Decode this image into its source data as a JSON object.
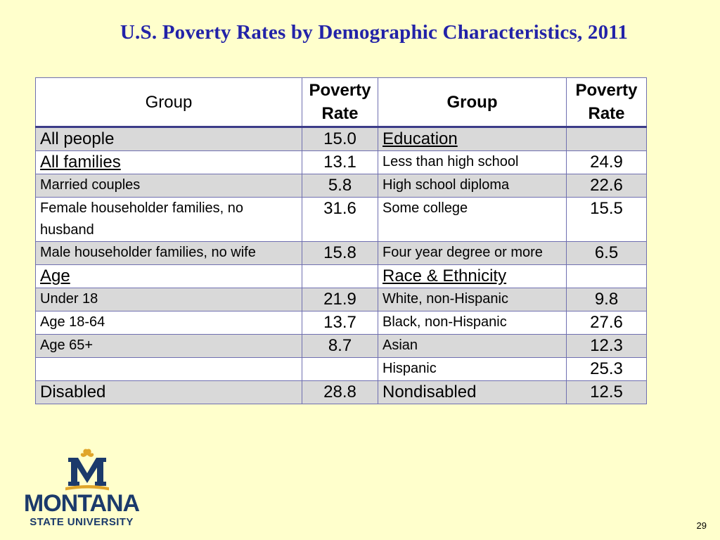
{
  "title": "U.S. Poverty Rates by Demographic Characteristics, 2011",
  "table": {
    "headers": [
      "Group",
      "Poverty Rate",
      "Group",
      "Poverty Rate"
    ],
    "rows": [
      {
        "shade": true,
        "left_group": "All people",
        "left_style": "main",
        "left_rate": "15.0",
        "right_group": "Education",
        "right_style": "hdr",
        "right_rate": ""
      },
      {
        "shade": false,
        "left_group": "All families",
        "left_style": "hdr",
        "left_rate": "13.1",
        "right_group": "Less than high school",
        "right_style": "sub",
        "right_rate": "24.9"
      },
      {
        "shade": true,
        "left_group": "Married couples",
        "left_style": "sub",
        "left_rate": "5.8",
        "right_group": "High school diploma",
        "right_style": "sub",
        "right_rate": "22.6"
      },
      {
        "shade": false,
        "left_group": "Female householder families, no husband",
        "left_style": "sub",
        "left_rate": "31.6",
        "right_group": "Some college",
        "right_style": "sub",
        "right_rate": "15.5"
      },
      {
        "shade": true,
        "left_group": "Male householder families, no wife",
        "left_style": "sub",
        "left_rate": "15.8",
        "right_group": "Four year degree or more",
        "right_style": "sub",
        "right_rate": "6.5"
      },
      {
        "shade": false,
        "left_group": "Age",
        "left_style": "hdr",
        "left_rate": "",
        "right_group": "Race & Ethnicity",
        "right_style": "hdr",
        "right_rate": ""
      },
      {
        "shade": true,
        "left_group": "Under 18",
        "left_style": "sub",
        "left_rate": "21.9",
        "right_group": "White, non-Hispanic",
        "right_style": "sub",
        "right_rate": "9.8"
      },
      {
        "shade": false,
        "left_group": "Age 18-64",
        "left_style": "sub",
        "left_rate": "13.7",
        "right_group": "Black, non-Hispanic",
        "right_style": "sub",
        "right_rate": "27.6"
      },
      {
        "shade": true,
        "left_group": "Age 65+",
        "left_style": "sub",
        "left_rate": "8.7",
        "right_group": "Asian",
        "right_style": "sub",
        "right_rate": "12.3"
      },
      {
        "shade": false,
        "left_group": "",
        "left_style": "sub",
        "left_rate": "",
        "right_group": "Hispanic",
        "right_style": "sub",
        "right_rate": "25.3"
      },
      {
        "shade": true,
        "left_group": "Disabled",
        "left_style": "main",
        "left_rate": "28.8",
        "right_group": "Nondisabled",
        "right_style": "main",
        "right_rate": "12.5"
      }
    ]
  },
  "logo": {
    "name": "MONTANA",
    "subname": "STATE UNIVERSITY",
    "colors": {
      "navy": "#1b3a6b",
      "gold": "#e0a52a"
    }
  },
  "page_number": "29",
  "colors": {
    "background": "#ffffcc",
    "title": "#2323a8",
    "shade": "#d9d9d9",
    "border": "#6f6fb0"
  }
}
